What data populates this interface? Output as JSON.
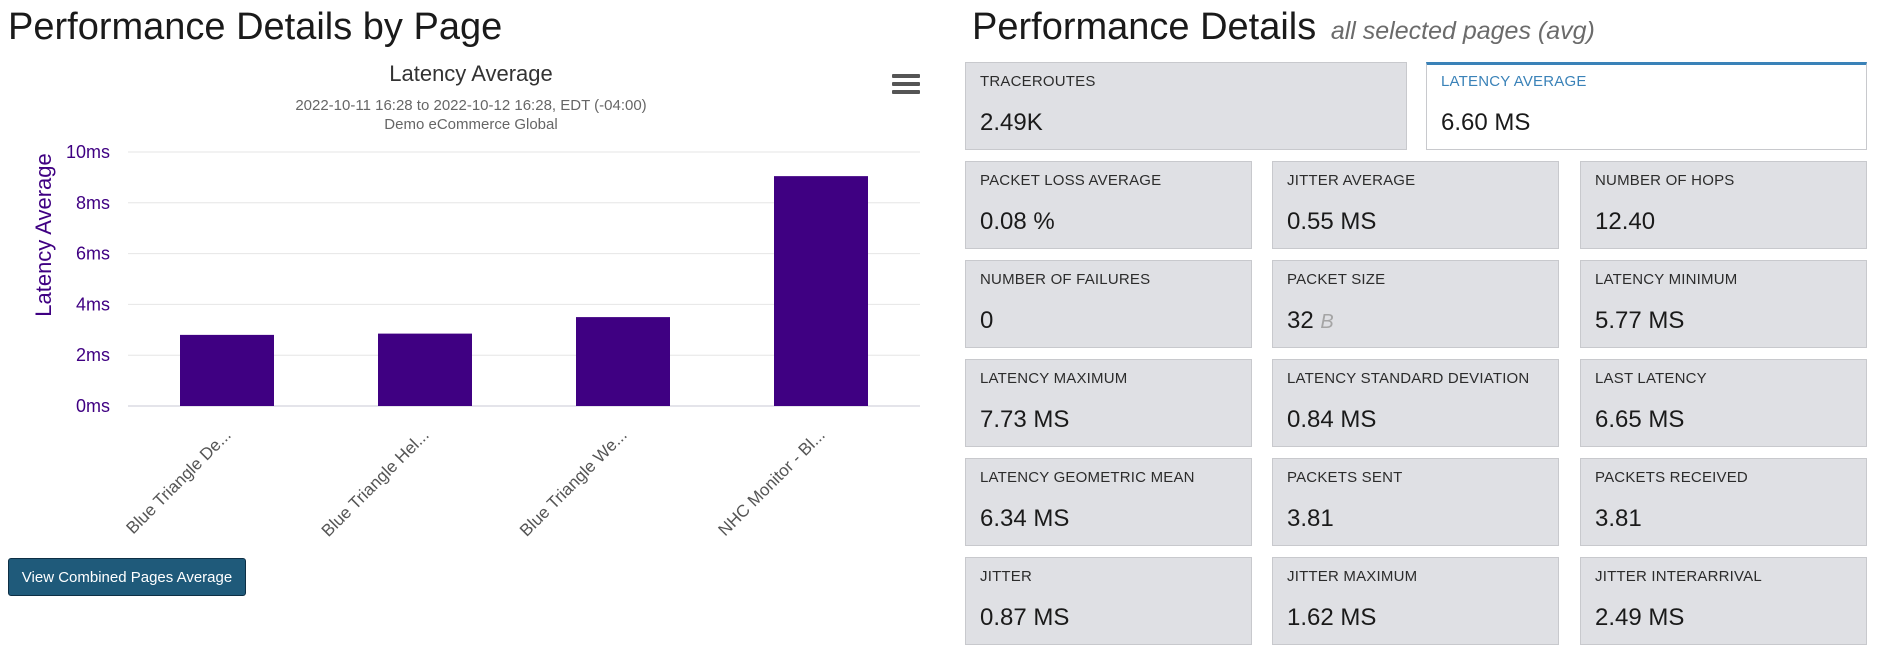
{
  "left_title": "Performance Details by Page",
  "right_title": "Performance Details",
  "right_subtitle": "all selected pages (avg)",
  "combined_button_label": "View Combined Pages Average",
  "menu_icon": "hamburger-menu-icon",
  "colors": {
    "bar": "#3f0082",
    "axis_text": "#3f0082",
    "button": "#1f5a7a",
    "selected_border": "#3a82b8"
  },
  "chart_data": {
    "type": "bar",
    "title": "Latency Average",
    "subtitle": "2022-10-11 16:28 to 2022-10-12 16:28, EDT (-04:00)",
    "subtitle2": "Demo eCommerce Global",
    "ylabel": "Latency Average",
    "xlabel": "",
    "ylim": [
      0,
      10
    ],
    "yticks": [
      "0ms",
      "2ms",
      "4ms",
      "6ms",
      "8ms",
      "10ms"
    ],
    "yticks_values": [
      0,
      2,
      4,
      6,
      8,
      10
    ],
    "categories": [
      "Blue Triangle De...",
      "Blue Triangle Hel...",
      "Blue Triangle We...",
      "NHC Monitor - Bl..."
    ],
    "values": [
      2.8,
      2.85,
      3.5,
      9.05
    ],
    "grid": true
  },
  "tiles": [
    {
      "label": "TRACEROUTES",
      "value": "2.49K",
      "unit": ""
    },
    {
      "label": "LATENCY AVERAGE",
      "value": "6.60 MS",
      "unit": "",
      "selected": true
    },
    {
      "label": "PACKET LOSS AVERAGE",
      "value": "0.08 %",
      "unit": ""
    },
    {
      "label": "JITTER AVERAGE",
      "value": "0.55 MS",
      "unit": ""
    },
    {
      "label": "NUMBER OF HOPS",
      "value": "12.40",
      "unit": ""
    },
    {
      "label": "NUMBER OF FAILURES",
      "value": "0",
      "unit": ""
    },
    {
      "label": "PACKET SIZE",
      "value": "32",
      "unit": "B"
    },
    {
      "label": "LATENCY MINIMUM",
      "value": "5.77 MS",
      "unit": ""
    },
    {
      "label": "LATENCY MAXIMUM",
      "value": "7.73 MS",
      "unit": ""
    },
    {
      "label": "LATENCY STANDARD DEVIATION",
      "value": "0.84 MS",
      "unit": ""
    },
    {
      "label": "LAST LATENCY",
      "value": "6.65 MS",
      "unit": ""
    },
    {
      "label": "LATENCY GEOMETRIC MEAN",
      "value": "6.34 MS",
      "unit": ""
    },
    {
      "label": "PACKETS SENT",
      "value": "3.81",
      "unit": ""
    },
    {
      "label": "PACKETS RECEIVED",
      "value": "3.81",
      "unit": ""
    },
    {
      "label": "JITTER",
      "value": "0.87 MS",
      "unit": ""
    },
    {
      "label": "JITTER MAXIMUM",
      "value": "1.62 MS",
      "unit": ""
    },
    {
      "label": "JITTER INTERARRIVAL",
      "value": "2.49 MS",
      "unit": ""
    }
  ]
}
